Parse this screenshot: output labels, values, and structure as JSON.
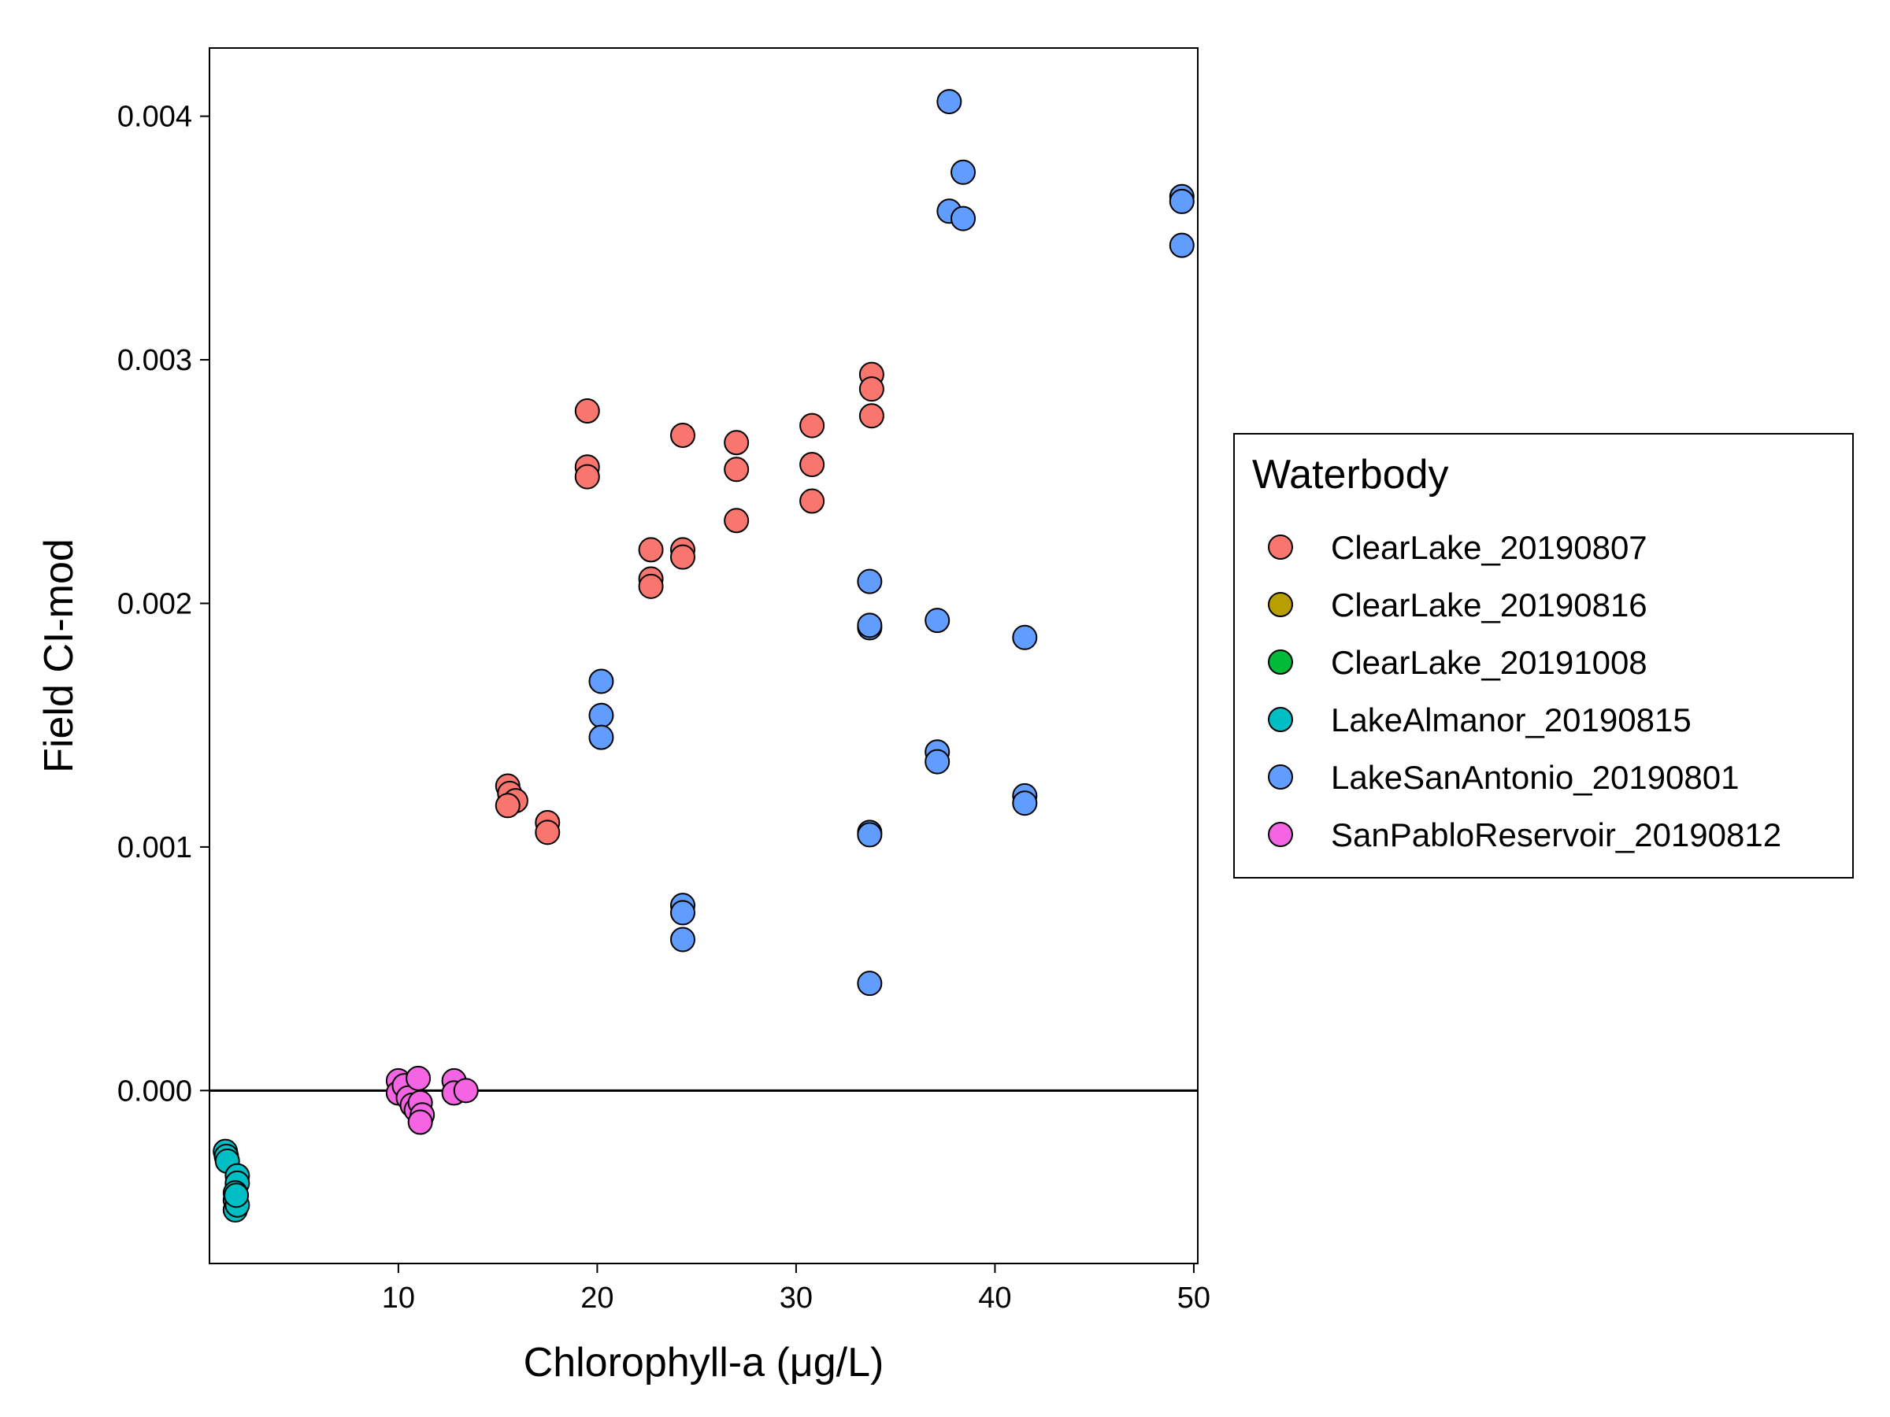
{
  "chart_data": {
    "type": "scatter",
    "xlabel": "Chlorophyll-a (μg/L)",
    "ylabel": "Field CI-mod",
    "xlim": [
      0.5,
      50.2
    ],
    "ylim": [
      -0.00071,
      0.00428
    ],
    "x_ticks": [
      10,
      20,
      30,
      40,
      50
    ],
    "y_ticks": [
      0.0,
      0.001,
      0.002,
      0.003,
      0.004
    ],
    "y_tick_labels": [
      "0.000",
      "0.001",
      "0.002",
      "0.003",
      "0.004"
    ],
    "reference_line_y": 0,
    "grid": false,
    "legend": {
      "title": "Waterbody",
      "position": "right"
    },
    "series": [
      {
        "name": "ClearLake_20190807",
        "color": "#F8766D",
        "points": [
          [
            15.5,
            0.00125
          ],
          [
            15.6,
            0.00122
          ],
          [
            15.9,
            0.00119
          ],
          [
            15.5,
            0.00117
          ],
          [
            17.5,
            0.0011
          ],
          [
            17.5,
            0.00106
          ],
          [
            19.5,
            0.00279
          ],
          [
            19.5,
            0.00256
          ],
          [
            19.5,
            0.00252
          ],
          [
            22.7,
            0.00222
          ],
          [
            22.7,
            0.0021
          ],
          [
            22.7,
            0.00207
          ],
          [
            24.3,
            0.00269
          ],
          [
            24.3,
            0.00222
          ],
          [
            24.3,
            0.00219
          ],
          [
            27.0,
            0.00266
          ],
          [
            27.0,
            0.00255
          ],
          [
            27.0,
            0.00234
          ],
          [
            30.8,
            0.00273
          ],
          [
            30.8,
            0.00257
          ],
          [
            30.8,
            0.00242
          ],
          [
            33.8,
            0.00294
          ],
          [
            33.8,
            0.00288
          ],
          [
            33.8,
            0.00277
          ]
        ]
      },
      {
        "name": "ClearLake_20190816",
        "color": "#B79F00",
        "points": []
      },
      {
        "name": "ClearLake_20191008",
        "color": "#00BA38",
        "points": []
      },
      {
        "name": "LakeAlmanor_20190815",
        "color": "#00BFC4",
        "points": [
          [
            1.3,
            -0.00025
          ],
          [
            1.35,
            -0.00027
          ],
          [
            1.4,
            -0.00029
          ],
          [
            1.9,
            -0.00035
          ],
          [
            1.9,
            -0.00038
          ],
          [
            1.8,
            -0.00042
          ],
          [
            1.8,
            -0.00045
          ],
          [
            1.8,
            -0.00049
          ],
          [
            1.9,
            -0.00047
          ],
          [
            1.85,
            -0.00043
          ]
        ]
      },
      {
        "name": "LakeSanAntonio_20190801",
        "color": "#619CFF",
        "points": [
          [
            37.7,
            0.00406
          ],
          [
            38.4,
            0.00377
          ],
          [
            37.7,
            0.00361
          ],
          [
            38.4,
            0.00358
          ],
          [
            49.4,
            0.00367
          ],
          [
            49.4,
            0.00365
          ],
          [
            49.4,
            0.00347
          ],
          [
            33.7,
            0.00209
          ],
          [
            33.7,
            0.0019
          ],
          [
            33.7,
            0.00191
          ],
          [
            37.1,
            0.00193
          ],
          [
            41.5,
            0.00186
          ],
          [
            20.2,
            0.00168
          ],
          [
            20.2,
            0.00154
          ],
          [
            20.2,
            0.00145
          ],
          [
            37.1,
            0.00139
          ],
          [
            37.1,
            0.00135
          ],
          [
            41.5,
            0.00121
          ],
          [
            41.5,
            0.00118
          ],
          [
            33.7,
            0.00106
          ],
          [
            33.7,
            0.00105
          ],
          [
            24.3,
            0.00076
          ],
          [
            24.3,
            0.00073
          ],
          [
            24.3,
            0.00062
          ],
          [
            33.7,
            0.00044
          ]
        ]
      },
      {
        "name": "SanPabloReservoir_20190812",
        "color": "#F564E3",
        "points": [
          [
            10.0,
            4e-05
          ],
          [
            10.0,
            -1e-05
          ],
          [
            10.3,
            2e-05
          ],
          [
            10.5,
            -3e-05
          ],
          [
            10.7,
            -6e-05
          ],
          [
            10.9,
            -8e-05
          ],
          [
            11.0,
            5e-05
          ],
          [
            11.1,
            -5e-05
          ],
          [
            11.2,
            -0.0001
          ],
          [
            11.1,
            -0.00013
          ],
          [
            12.8,
            4e-05
          ],
          [
            12.8,
            -1e-05
          ],
          [
            13.4,
            0.0
          ]
        ]
      }
    ]
  }
}
